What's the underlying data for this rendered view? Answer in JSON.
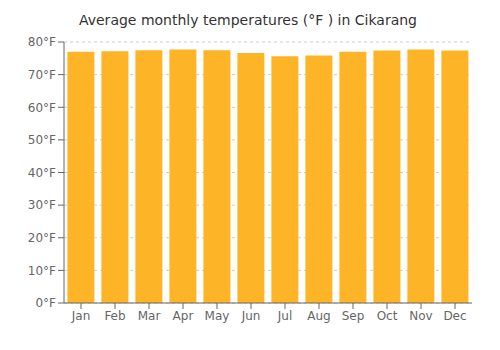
{
  "chart_data": {
    "type": "bar",
    "title": "Average monthly temperatures (°F ) in Cikarang",
    "categories": [
      "Jan",
      "Feb",
      "Mar",
      "Apr",
      "May",
      "Jun",
      "Jul",
      "Aug",
      "Sep",
      "Oct",
      "Nov",
      "Dec"
    ],
    "values": [
      77.0,
      77.2,
      77.5,
      77.7,
      77.5,
      76.6,
      75.6,
      75.9,
      77.0,
      77.4,
      77.7,
      77.4
    ],
    "color": "#FDB527",
    "ylim": [
      0,
      80
    ],
    "yticks": [
      {
        "value": 0,
        "label": "0°F"
      },
      {
        "value": 10,
        "label": "10°F"
      },
      {
        "value": 20,
        "label": "20°F"
      },
      {
        "value": 30,
        "label": "30°F"
      },
      {
        "value": 40,
        "label": "40°F"
      },
      {
        "value": 50,
        "label": "50°F"
      },
      {
        "value": 60,
        "label": "60°F"
      },
      {
        "value": 70,
        "label": "70°F"
      },
      {
        "value": 80,
        "label": "80°F"
      }
    ],
    "grid": true
  }
}
